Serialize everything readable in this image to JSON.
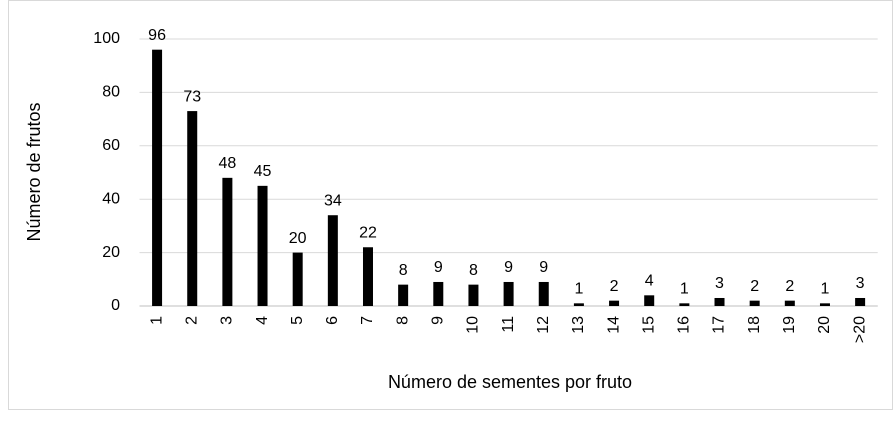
{
  "chart_data": {
    "type": "bar",
    "xlabel": "Número de sementes por fruto",
    "ylabel": "Número de frutos",
    "categories": [
      "1",
      "2",
      "3",
      "4",
      "5",
      "6",
      "7",
      "8",
      "9",
      "10",
      "11",
      "12",
      "13",
      "14",
      "15",
      "16",
      "17",
      "18",
      "19",
      "20",
      ">20"
    ],
    "values": [
      96,
      73,
      48,
      45,
      20,
      34,
      22,
      8,
      9,
      8,
      9,
      9,
      1,
      2,
      4,
      1,
      3,
      2,
      2,
      1,
      3
    ],
    "color": "#000000",
    "ylim": [
      0,
      100
    ],
    "yticks": [
      0,
      20,
      40,
      60,
      80,
      100
    ],
    "grid": true
  }
}
